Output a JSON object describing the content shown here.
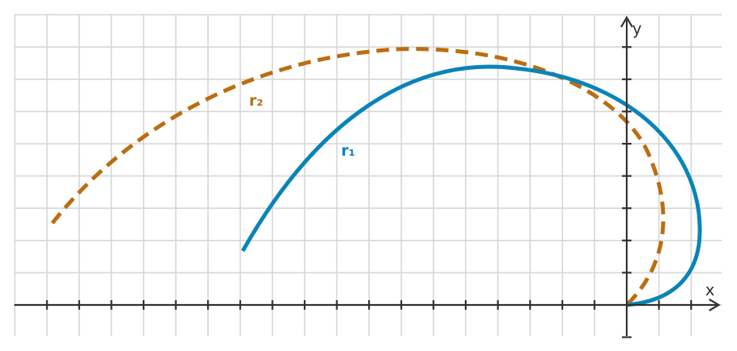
{
  "axes": {
    "x_label": "x",
    "y_label": "y"
  },
  "curves": [
    {
      "id": "r2",
      "label": "r₂",
      "color": "#bb6d10",
      "style": "dashed"
    },
    {
      "id": "r1",
      "label": "r₁",
      "color": "#0a84b8",
      "style": "solid"
    }
  ],
  "colors": {
    "grid": "#d6d6d6",
    "axis": "#2f2f2f",
    "background": "#ffffff"
  }
}
